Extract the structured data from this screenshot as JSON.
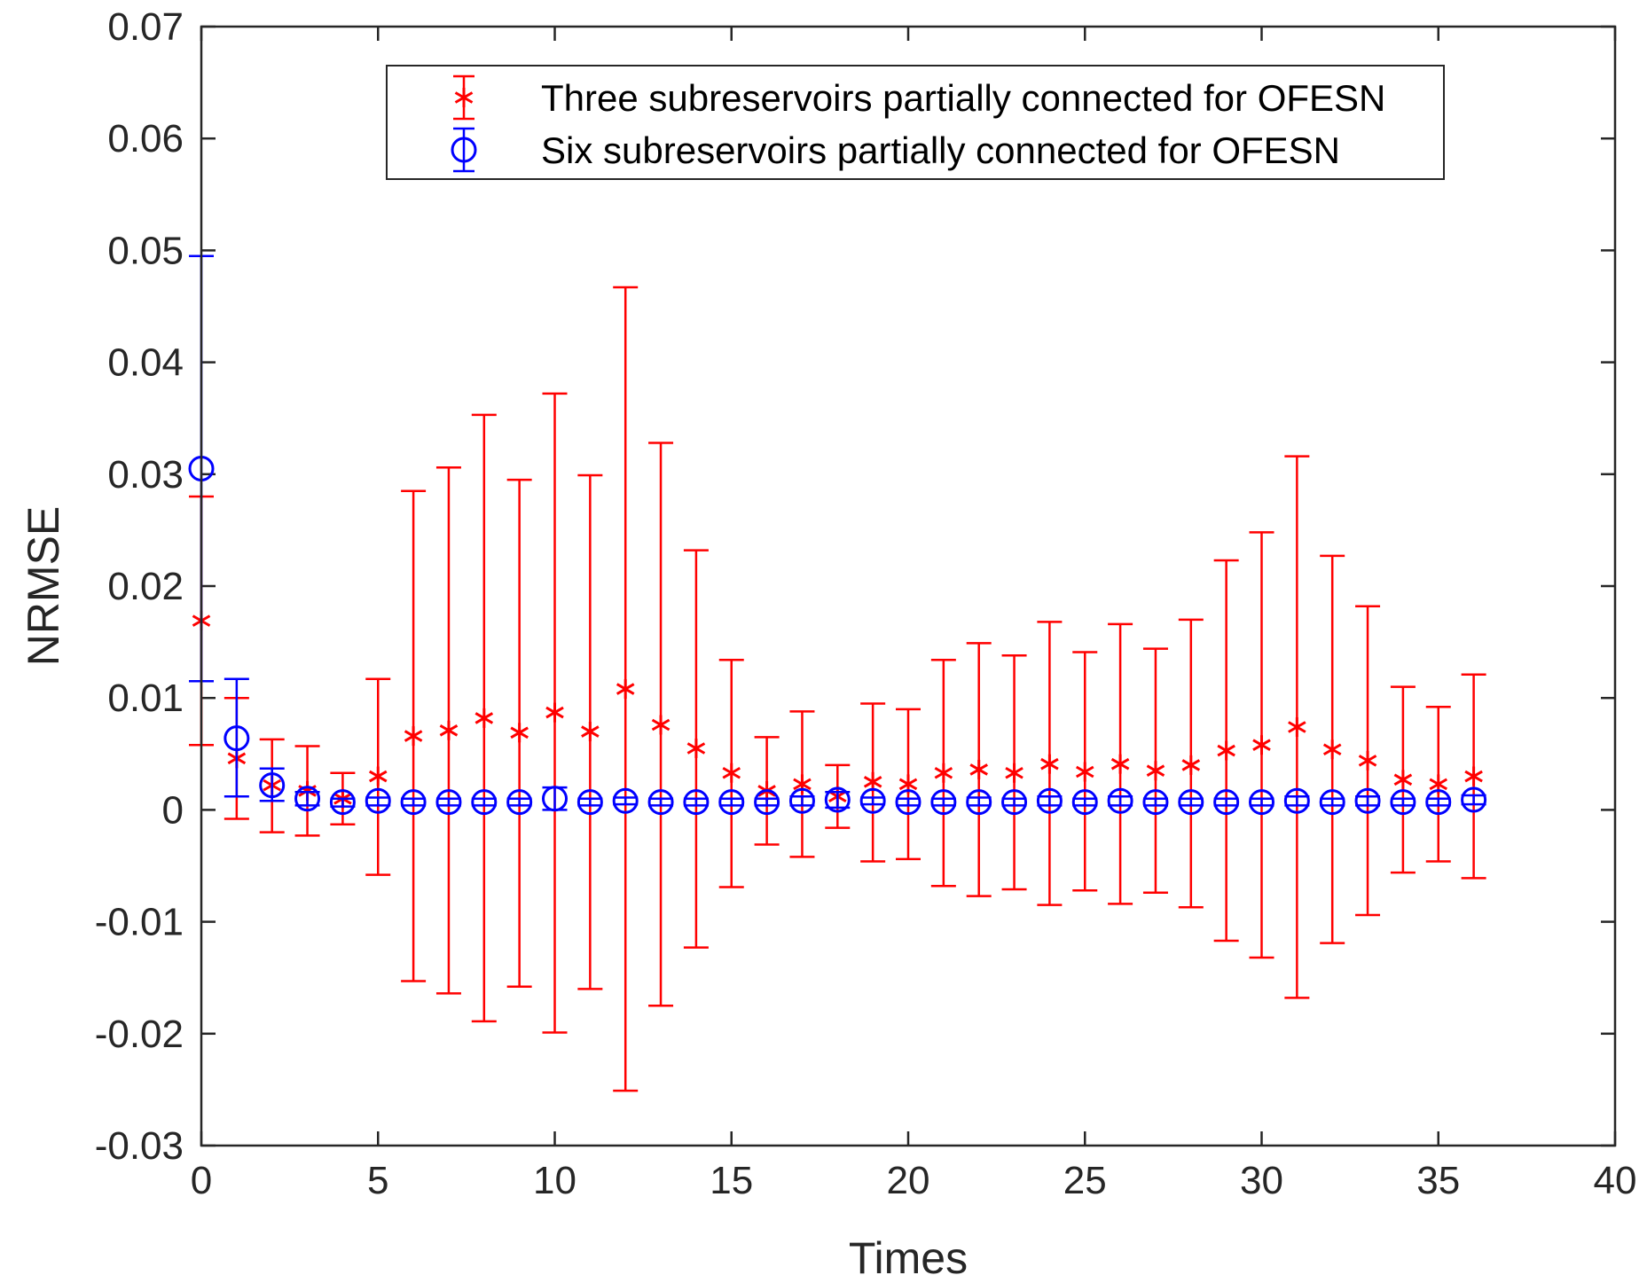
{
  "chart_data": {
    "type": "errorbar",
    "title": "",
    "xlabel": "Times",
    "ylabel": "NRMSE",
    "xlim": [
      0,
      40
    ],
    "ylim": [
      -0.03,
      0.07
    ],
    "x_ticks": [
      0,
      5,
      10,
      15,
      20,
      25,
      30,
      35,
      40
    ],
    "x_tick_labels": [
      "0",
      "5",
      "10",
      "15",
      "20",
      "25",
      "30",
      "35",
      "40"
    ],
    "y_ticks": [
      -0.03,
      -0.02,
      -0.01,
      0,
      0.01,
      0.02,
      0.03,
      0.04,
      0.05,
      0.06,
      0.07
    ],
    "y_tick_labels": [
      "-0.03",
      "-0.02",
      "-0.01",
      "0",
      "0.01",
      "0.02",
      "0.03",
      "0.04",
      "0.05",
      "0.06",
      "0.07"
    ],
    "grid": false,
    "legend_position": "top-center",
    "x": [
      0,
      1,
      2,
      3,
      4,
      5,
      6,
      7,
      8,
      9,
      10,
      11,
      12,
      13,
      14,
      15,
      16,
      17,
      18,
      19,
      20,
      21,
      22,
      23,
      24,
      25,
      26,
      27,
      28,
      29,
      30,
      31,
      32,
      33,
      34,
      35,
      36
    ],
    "series": [
      {
        "name": "Three subreservoirs partially connected for OFESN",
        "marker": "asterisk",
        "color": "#ff0000",
        "values": [
          0.0169,
          0.0046,
          0.0022,
          0.0017,
          0.001,
          0.003,
          0.0066,
          0.0071,
          0.0082,
          0.0069,
          0.0087,
          0.007,
          0.0108,
          0.0076,
          0.0055,
          0.0033,
          0.0017,
          0.0023,
          0.0012,
          0.0025,
          0.0023,
          0.0033,
          0.0036,
          0.0033,
          0.0041,
          0.0034,
          0.0041,
          0.0035,
          0.004,
          0.0053,
          0.0058,
          0.0074,
          0.0054,
          0.0044,
          0.0027,
          0.0023,
          0.003
        ],
        "upper": [
          0.028,
          0.01,
          0.0063,
          0.0057,
          0.0033,
          0.0117,
          0.0285,
          0.0306,
          0.0353,
          0.0295,
          0.0372,
          0.0299,
          0.0467,
          0.0328,
          0.0232,
          0.0134,
          0.0065,
          0.0088,
          0.004,
          0.0095,
          0.009,
          0.0134,
          0.0149,
          0.0138,
          0.0168,
          0.0141,
          0.0166,
          0.0144,
          0.017,
          0.0223,
          0.0248,
          0.0316,
          0.0227,
          0.0182,
          0.011,
          0.0092,
          0.0121
        ],
        "lower": [
          0.0058,
          -0.0008,
          -0.002,
          -0.0023,
          -0.0013,
          -0.0058,
          -0.0153,
          -0.0164,
          -0.0189,
          -0.0158,
          -0.0199,
          -0.016,
          -0.0251,
          -0.0175,
          -0.0123,
          -0.0069,
          -0.0031,
          -0.0042,
          -0.0016,
          -0.0046,
          -0.0044,
          -0.0068,
          -0.0077,
          -0.0071,
          -0.0085,
          -0.0072,
          -0.0084,
          -0.0074,
          -0.0087,
          -0.0117,
          -0.0132,
          -0.0168,
          -0.0119,
          -0.0094,
          -0.0056,
          -0.0046,
          -0.0061
        ]
      },
      {
        "name": "Six subreservoirs partially connected for OFESN",
        "marker": "circle",
        "color": "#0000ff",
        "values": [
          0.0305,
          0.0064,
          0.0022,
          0.001,
          0.0007,
          0.0008,
          0.0007,
          0.0007,
          0.0007,
          0.0007,
          0.001,
          0.0007,
          0.0008,
          0.0007,
          0.0007,
          0.0007,
          0.0007,
          0.0008,
          0.0009,
          0.0008,
          0.0007,
          0.0007,
          0.0007,
          0.0007,
          0.0008,
          0.0007,
          0.0008,
          0.0007,
          0.0007,
          0.0007,
          0.0007,
          0.0008,
          0.0007,
          0.0008,
          0.0007,
          0.0007,
          0.0009
        ],
        "upper": [
          0.0495,
          0.0117,
          0.0037,
          0.0016,
          0.001,
          0.0011,
          0.001,
          0.001,
          0.001,
          0.001,
          0.002,
          0.001,
          0.0011,
          0.001,
          0.001,
          0.001,
          0.001,
          0.0012,
          0.0016,
          0.0011,
          0.001,
          0.001,
          0.0011,
          0.001,
          0.0012,
          0.001,
          0.0012,
          0.001,
          0.001,
          0.001,
          0.001,
          0.0012,
          0.001,
          0.0012,
          0.001,
          0.001,
          0.0013
        ],
        "lower": [
          0.0115,
          0.0012,
          0.0008,
          0.0004,
          0.0003,
          0.0004,
          0.0004,
          0.0004,
          0.0004,
          0.0004,
          0.0,
          0.0004,
          0.0005,
          0.0004,
          0.0004,
          0.0004,
          0.0004,
          0.0004,
          0.0002,
          0.0005,
          0.0004,
          0.0004,
          0.0004,
          0.0004,
          0.0004,
          0.0004,
          0.0004,
          0.0004,
          0.0004,
          0.0004,
          0.0004,
          0.0004,
          0.0004,
          0.0004,
          0.0004,
          0.0004,
          0.0005
        ]
      }
    ]
  }
}
